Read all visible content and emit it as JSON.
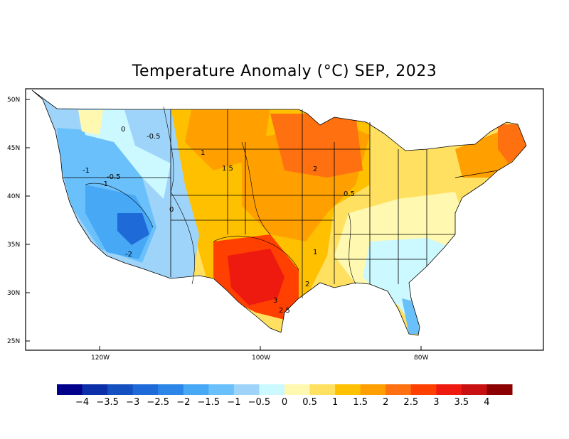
{
  "title": "Temperature Anomaly (°C) SEP, 2023",
  "axes": {
    "lat_ticks": [
      "50N",
      "45N",
      "40N",
      "35N",
      "30N",
      "25N"
    ],
    "lon_ticks": [
      "120W",
      "100W",
      "80W"
    ]
  },
  "legend": {
    "colors": [
      "#00008b",
      "#0a2fa8",
      "#1450c0",
      "#1e6ad8",
      "#2b86e8",
      "#47a8f5",
      "#6ac0fa",
      "#9ed4fa",
      "#ccf8ff",
      "#fff8b0",
      "#ffe060",
      "#ffc000",
      "#ffa000",
      "#ff7010",
      "#ff4000",
      "#ee1a10",
      "#c81010",
      "#8b0000"
    ],
    "labels": [
      "−4",
      "−3.5",
      "−3",
      "−2.5",
      "−2",
      "−1.5",
      "−1",
      "−0.5",
      "0",
      "0.5",
      "1",
      "1.5",
      "2",
      "2.5",
      "3",
      "3.5",
      "4"
    ]
  },
  "contour_labels": [
    "0",
    "-0.5",
    "1",
    "-1",
    "-0.5",
    "-1",
    "1.5",
    "2",
    "0",
    "0.5",
    "-2",
    "1",
    "2",
    "3",
    "2.5"
  ],
  "colors": {
    "background": "#ffffff",
    "coastline": "#000000"
  }
}
